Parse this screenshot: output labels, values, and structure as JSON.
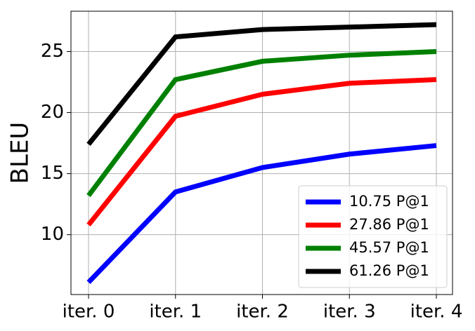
{
  "chart_data": {
    "type": "line",
    "y_label": "BLEU",
    "categories": [
      "iter. 0",
      "iter. 1",
      "iter. 2",
      "iter. 3",
      "iter. 4"
    ],
    "series": [
      {
        "name": "10.75 P@1",
        "color": "#0000ff",
        "values": [
          6.1,
          13.5,
          15.5,
          16.6,
          17.3
        ]
      },
      {
        "name": "27.86 P@1",
        "color": "#ff0000",
        "values": [
          10.8,
          19.7,
          21.5,
          22.4,
          22.7
        ]
      },
      {
        "name": "45.57 P@1",
        "color": "#008000",
        "values": [
          13.2,
          22.7,
          24.2,
          24.7,
          25.0
        ]
      },
      {
        "name": "61.26 P@1",
        "color": "#000000",
        "values": [
          17.4,
          26.2,
          26.8,
          27.0,
          27.2
        ]
      }
    ],
    "ylim": [
      5.1,
      28.3
    ],
    "yticks": [
      10,
      15,
      20,
      25
    ],
    "grid": true,
    "legend": "lower right"
  }
}
